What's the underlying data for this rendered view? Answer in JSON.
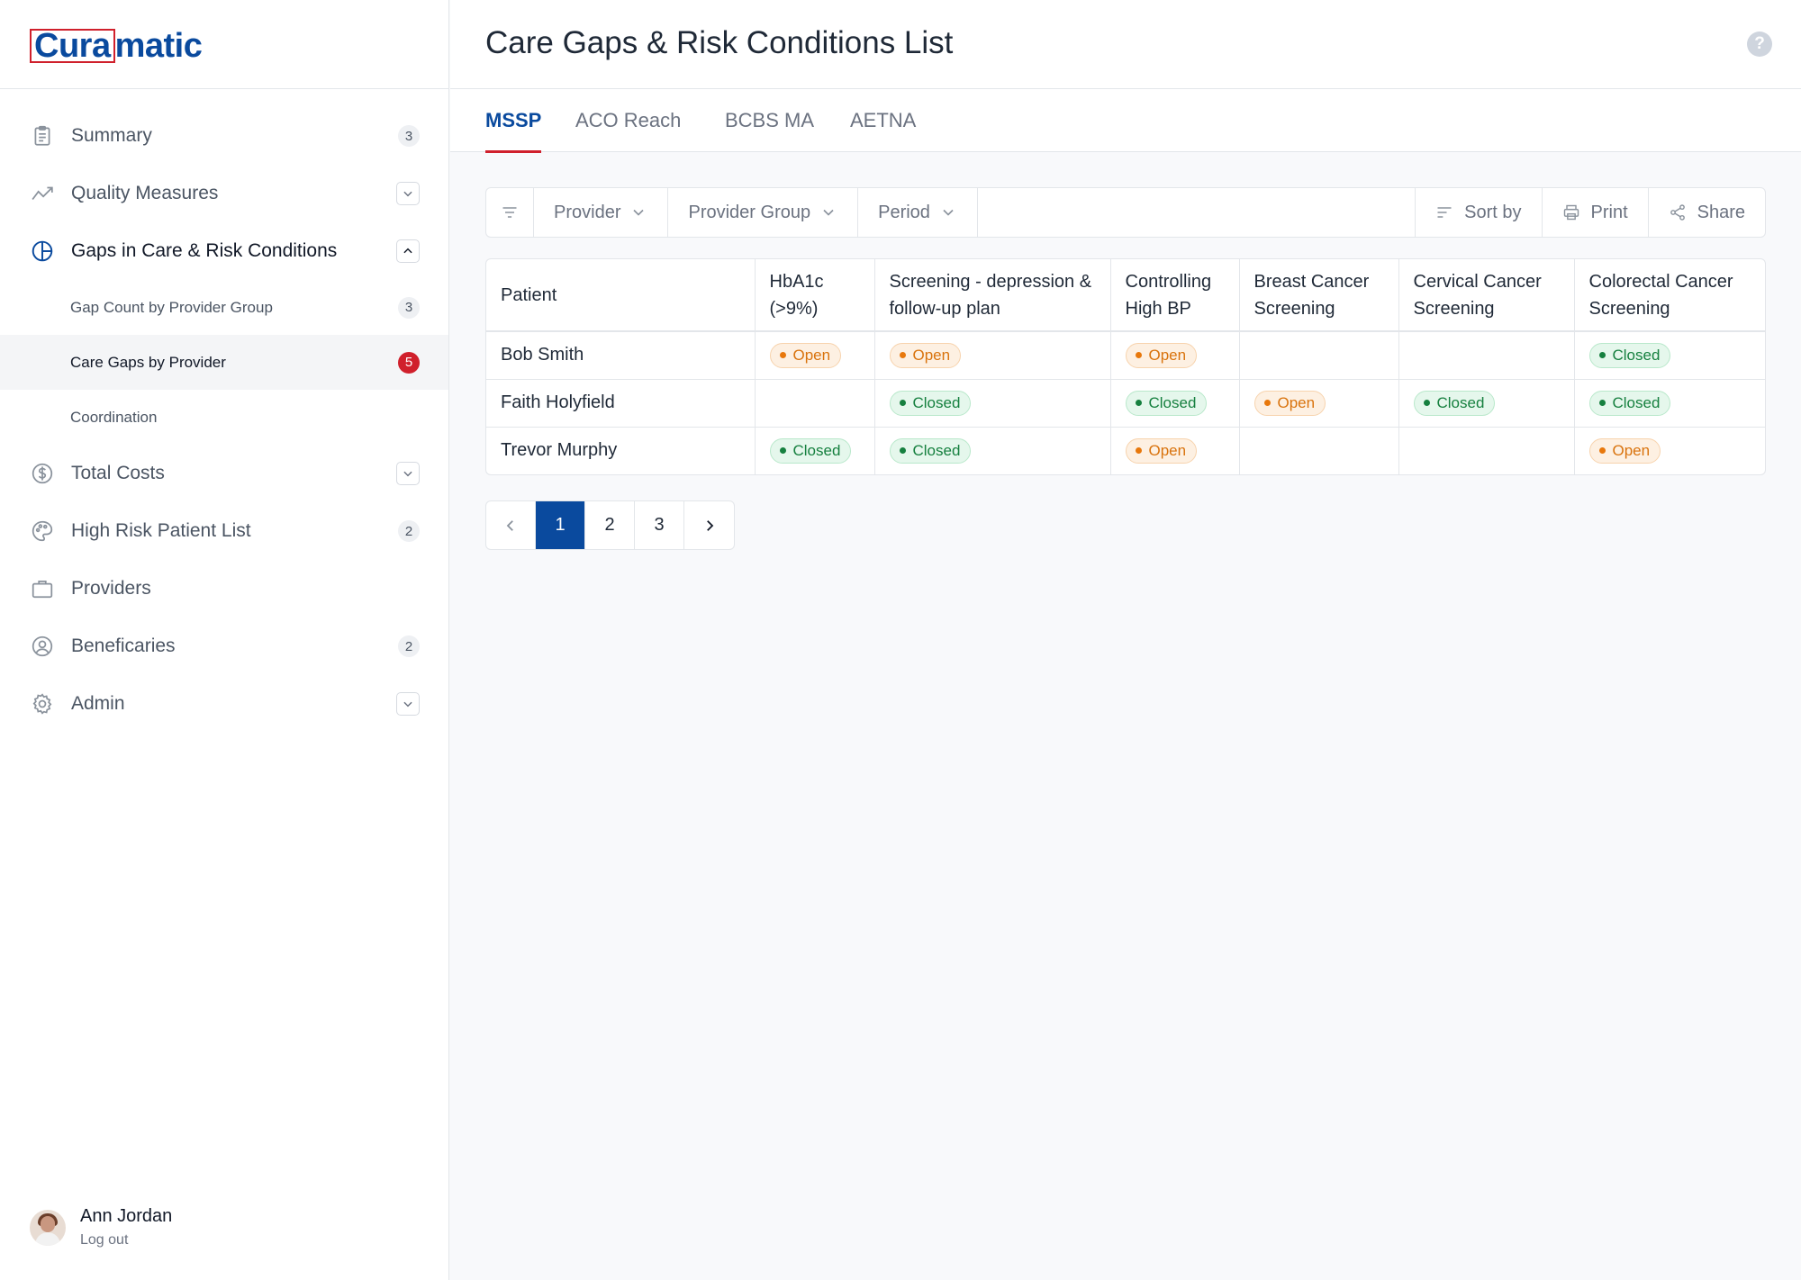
{
  "brand": {
    "logo_part1": "Cura",
    "logo_part2": "matic"
  },
  "header": {
    "title": "Care Gaps & Risk Conditions List",
    "help": "?"
  },
  "sidebar": {
    "items": [
      {
        "label": "Summary",
        "icon": "clipboard-icon",
        "badge": "3"
      },
      {
        "label": "Quality Measures",
        "icon": "trend-icon",
        "control": "chevron-down"
      },
      {
        "label": "Gaps in Care & Risk Conditions",
        "icon": "pie-chart-icon",
        "control": "chevron-up"
      }
    ],
    "subitems": [
      {
        "label": "Gap Count by Provider Group",
        "badge": "3"
      },
      {
        "label": "Care Gaps by Provider",
        "badge": "5",
        "selected": true
      },
      {
        "label": "Coordination"
      }
    ],
    "items2": [
      {
        "label": "Total Costs",
        "icon": "dollar-icon",
        "control": "chevron-down"
      },
      {
        "label": "High Risk Patient List",
        "icon": "palette-icon",
        "badge": "2"
      },
      {
        "label": "Providers",
        "icon": "briefcase-icon"
      },
      {
        "label": "Beneficaries",
        "icon": "user-circle-icon",
        "badge": "2"
      },
      {
        "label": "Admin",
        "icon": "gear-icon",
        "control": "chevron-down"
      }
    ]
  },
  "user": {
    "name": "Ann Jordan",
    "logout": "Log out"
  },
  "tabs": [
    "MSSP",
    "ACO Reach",
    "BCBS MA",
    "AETNA"
  ],
  "active_tab": "MSSP",
  "toolbar": {
    "provider": "Provider",
    "provider_group": "Provider Group",
    "period": "Period",
    "sort": "Sort by",
    "print": "Print",
    "share": "Share"
  },
  "table": {
    "headers": [
      "Patient",
      "HbA1c (>9%)",
      "Screening - depression & follow-up plan",
      "Controlling High BP",
      "Breast Cancer Screening",
      "Cervical Cancer Screening",
      "Colorectal Cancer Screening"
    ],
    "rows": [
      {
        "patient": "Bob Smith",
        "cells": [
          "Open",
          "Open",
          "Open",
          "",
          "",
          "Closed"
        ]
      },
      {
        "patient": "Faith Holyfield",
        "cells": [
          "",
          "Closed",
          "Closed",
          "Open",
          "Closed",
          "Closed"
        ]
      },
      {
        "patient": "Trevor Murphy",
        "cells": [
          "Closed",
          "Closed",
          "Open",
          "",
          "",
          "Open"
        ]
      }
    ]
  },
  "pagination": {
    "pages": [
      "1",
      "2",
      "3"
    ],
    "current": "1"
  },
  "colors": {
    "accent": "#0a4a9e",
    "brand_red": "#d0202c",
    "open": "#e8780c",
    "closed": "#16803f"
  }
}
